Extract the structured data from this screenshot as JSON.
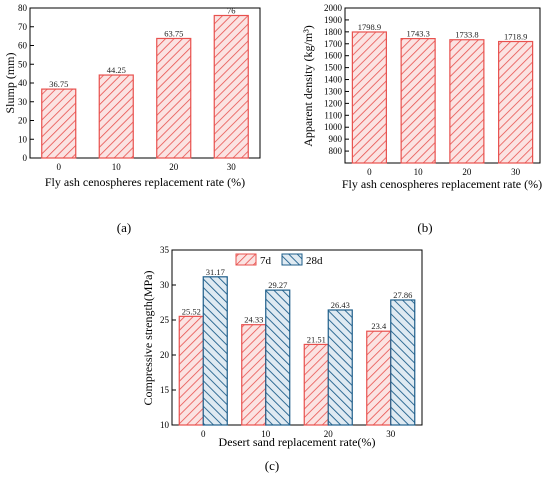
{
  "colors": {
    "red": "#e8514e",
    "red_fill": "#fbe3e2",
    "blue": "#1f5f8b",
    "blue_fill": "#dfeaf2"
  },
  "chart_data": [
    {
      "id": "a",
      "panel_label": "(a)",
      "type": "bar",
      "categories": [
        "0",
        "10",
        "20",
        "30"
      ],
      "values": [
        36.75,
        44.25,
        63.75,
        76
      ],
      "value_labels": [
        "36.75",
        "44.25",
        "63.75",
        "76"
      ],
      "xlabel": "Fly ash cenospheres replacement rate (%)",
      "ylabel": "Slump (mm)",
      "ylim": [
        0,
        80
      ],
      "yticks": [
        "0",
        "10",
        "20",
        "30",
        "40",
        "50",
        "60",
        "70",
        "80"
      ],
      "pattern": "red-hatch"
    },
    {
      "id": "b",
      "panel_label": "(b)",
      "type": "bar",
      "categories": [
        "0",
        "10",
        "20",
        "30"
      ],
      "values": [
        1798.9,
        1743.3,
        1733.8,
        1718.9
      ],
      "value_labels": [
        "1798.9",
        "1743.3",
        "1733.8",
        "1718.9"
      ],
      "xlabel": "Fly ash cenospheres replacement rate (%)",
      "ylabel": "Apparent density (kg/m³)",
      "ylim": [
        700,
        2000
      ],
      "yticks": [
        "800",
        "900",
        "1000",
        "1100",
        "1200",
        "1300",
        "1400",
        "1500",
        "1600",
        "1700",
        "1800",
        "1900",
        "2000"
      ],
      "pattern": "red-hatch"
    },
    {
      "id": "c",
      "panel_label": "(c)",
      "type": "bar",
      "categories": [
        "0",
        "10",
        "20",
        "30"
      ],
      "series": [
        {
          "name": "7d",
          "values": [
            25.52,
            24.33,
            21.51,
            23.4
          ],
          "value_labels": [
            "25.52",
            "24.33",
            "21.51",
            "23.4"
          ],
          "pattern": "red-hatch"
        },
        {
          "name": "28d",
          "values": [
            31.17,
            29.27,
            26.43,
            27.86
          ],
          "value_labels": [
            "31.17",
            "29.27",
            "26.43",
            "27.86"
          ],
          "pattern": "blue-hatch"
        }
      ],
      "xlabel": "Desert sand replacement rate(%)",
      "ylabel": "Compressive strength(MPa)",
      "ylim": [
        10,
        35
      ],
      "yticks": [
        "10",
        "15",
        "20",
        "25",
        "30",
        "35"
      ],
      "legend": "top-center"
    }
  ]
}
